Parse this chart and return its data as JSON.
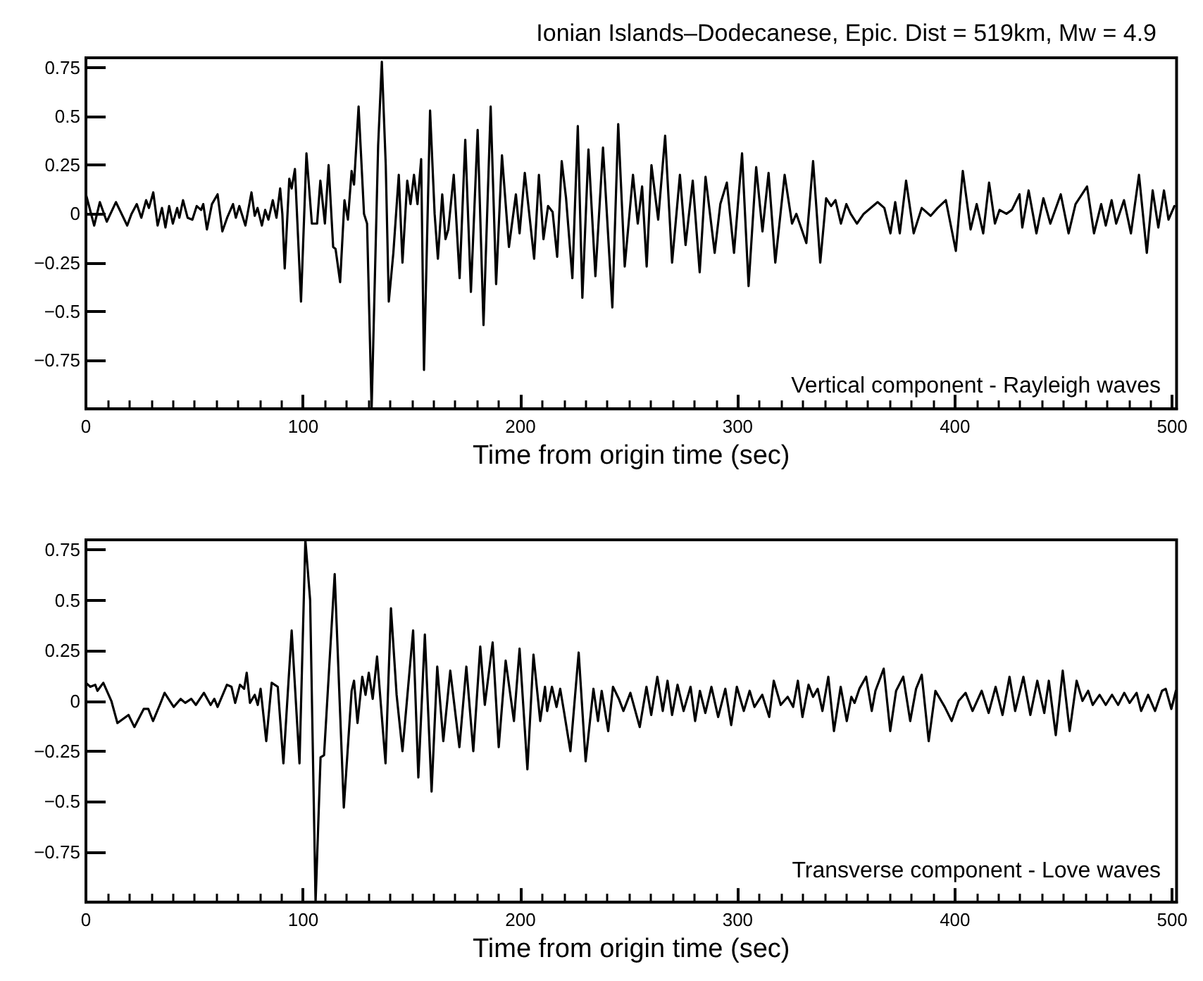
{
  "chart_data": [
    {
      "type": "line",
      "title": "Ionian Islands–Dodecanese, Epic. Dist = 519km, Mw = 4.9",
      "xlabel": "Time from origin time (sec)",
      "annotations": [
        "Vertical component - Rayleigh waves"
      ],
      "marker": "none",
      "xlim": [
        0,
        502
      ],
      "ylim": [
        -1,
        0.8
      ],
      "xticks": [
        0,
        100,
        200,
        300,
        400,
        500
      ],
      "yticks": [
        {
          "value": -0.75,
          "label": "−0.75"
        },
        {
          "value": -0.5,
          "label": "−0.5"
        },
        {
          "value": -0.25,
          "label": "−0.25"
        },
        0,
        0.25,
        0.5,
        0.75
      ],
      "series": [
        {
          "color": "#000000",
          "x": [
            0,
            3.8,
            6.4,
            9.6,
            13.8,
            19,
            21,
            23.4,
            25.5,
            27.7,
            29,
            31,
            33,
            35,
            36.6,
            38.3,
            40,
            42,
            43,
            44.7,
            46.8,
            49,
            51,
            53,
            54,
            55.7,
            58,
            60.6,
            62.8,
            65,
            67.7,
            69,
            70.6,
            73.4,
            76.2,
            77.7,
            79,
            81,
            82.5,
            84,
            86,
            87.7,
            89.4,
            90.4,
            91.5,
            93.6,
            94.7,
            96.2,
            99,
            101.5,
            104,
            106.4,
            107.9,
            110,
            111.7,
            113.8,
            114.9,
            117,
            119,
            120.6,
            122.3,
            123.4,
            125.5,
            128,
            129.4,
            131.5,
            134.5,
            136.2,
            138,
            139.4,
            141.5,
            144,
            145.7,
            147.9,
            149.4,
            151,
            152.6,
            154.3,
            155.6,
            158.4,
            160.5,
            162,
            164,
            165.5,
            166.8,
            169.3,
            172,
            174.6,
            177.2,
            180.3,
            183,
            186.3,
            188.8,
            191.5,
            194.7,
            197.9,
            199.6,
            202,
            206.3,
            208.5,
            210.6,
            212.7,
            214.8,
            216.9,
            219,
            221,
            223.9,
            226.4,
            228.5,
            231.3,
            234.5,
            238,
            242.3,
            245,
            248,
            251.8,
            254,
            256,
            258.1,
            260.3,
            263.4,
            266.6,
            269.8,
            273.4,
            276,
            279.3,
            282.5,
            285.2,
            289.4,
            292,
            295,
            298.3,
            302,
            305,
            308.5,
            311.4,
            314.2,
            317.3,
            321.6,
            325,
            327,
            331.6,
            334.7,
            338,
            340.7,
            343,
            345,
            347.5,
            350,
            352,
            354.9,
            358,
            364.4,
            367.5,
            370.3,
            372.5,
            374.6,
            377.5,
            381,
            384.7,
            388.8,
            392,
            395.8,
            400.4,
            403.6,
            407.2,
            410,
            413,
            415.7,
            418.4,
            420.5,
            423.7,
            426.2,
            429.7,
            431,
            433.9,
            437.5,
            440.7,
            443.9,
            448.7,
            452.3,
            455.5,
            460.8,
            464,
            467.3,
            469.4,
            472.1,
            474.2,
            477.8,
            481,
            484.7,
            488.3,
            491,
            493.6,
            496.2,
            498.3,
            501
          ],
          "values": [
            0.1,
            -0.06,
            0.06,
            -0.04,
            0.06,
            -0.06,
            0,
            0.05,
            -0.02,
            0.07,
            0.03,
            0.11,
            -0.06,
            0.03,
            -0.07,
            0.04,
            -0.05,
            0.03,
            -0.02,
            0.07,
            -0.02,
            -0.03,
            0.04,
            0.02,
            0.05,
            -0.08,
            0.05,
            0.1,
            -0.09,
            -0.02,
            0.05,
            -0.02,
            0.04,
            -0.06,
            0.11,
            -0.01,
            0.03,
            -0.06,
            0.02,
            -0.03,
            0.07,
            -0.02,
            0.13,
            0,
            -0.28,
            0.18,
            0.13,
            0.23,
            -0.45,
            0.31,
            -0.05,
            -0.05,
            0.17,
            -0.05,
            0.25,
            -0.17,
            -0.18,
            -0.35,
            0.07,
            -0.03,
            0.22,
            0.15,
            0.55,
            0,
            -0.05,
            -1,
            0.35,
            0.78,
            0.25,
            -0.45,
            -0.2,
            0.2,
            -0.25,
            0.17,
            0.05,
            0.2,
            0.05,
            0.28,
            -0.8,
            0.53,
            0,
            -0.23,
            0.1,
            -0.13,
            -0.08,
            0.2,
            -0.33,
            0.38,
            -0.4,
            0.43,
            -0.57,
            0.55,
            -0.36,
            0.3,
            -0.17,
            0.1,
            -0.1,
            0.21,
            -0.23,
            0.2,
            -0.13,
            0.04,
            0.01,
            -0.22,
            0.27,
            0.08,
            -0.33,
            0.45,
            -0.43,
            0.33,
            -0.32,
            0.34,
            -0.48,
            0.46,
            -0.27,
            0.2,
            -0.05,
            0.14,
            -0.27,
            0.25,
            -0.03,
            0.4,
            -0.25,
            0.2,
            -0.16,
            0.17,
            -0.3,
            0.19,
            -0.2,
            0.05,
            0.16,
            -0.2,
            0.31,
            -0.37,
            0.24,
            -0.09,
            0.21,
            -0.25,
            0.2,
            -0.05,
            0,
            -0.15,
            0.27,
            -0.25,
            0.08,
            0.04,
            0.07,
            -0.05,
            0.05,
            0,
            -0.05,
            0,
            0.06,
            0.03,
            -0.1,
            0.06,
            -0.1,
            0.17,
            -0.1,
            0.03,
            -0.01,
            0.03,
            0.07,
            -0.19,
            0.22,
            -0.08,
            0.05,
            -0.1,
            0.16,
            -0.05,
            0.02,
            0,
            0.02,
            0.1,
            -0.07,
            0.12,
            -0.1,
            0.08,
            -0.05,
            0.1,
            -0.1,
            0.05,
            0.14,
            -0.1,
            0.05,
            -0.06,
            0.07,
            -0.05,
            0.07,
            -0.1,
            0.2,
            -0.2,
            0.12,
            -0.07,
            0.12,
            -0.03,
            0.04
          ]
        }
      ]
    },
    {
      "type": "line",
      "xlabel": "Time from origin time (sec)",
      "annotations": [
        "Transverse component - Love waves"
      ],
      "marker": "none",
      "xlim": [
        0,
        502
      ],
      "ylim": [
        -1,
        0.8
      ],
      "xticks": [
        0,
        100,
        200,
        300,
        400,
        500
      ],
      "yticks": [
        {
          "value": -0.75,
          "label": "−0.75"
        },
        {
          "value": -0.5,
          "label": "−0.5"
        },
        {
          "value": -0.25,
          "label": "−0.25"
        },
        0,
        0.25,
        0.5,
        0.75
      ],
      "series": [
        {
          "color": "#000000",
          "x": [
            0,
            2,
            4.3,
            5.3,
            8,
            11.7,
            14.5,
            19.6,
            22.3,
            26.6,
            28.7,
            30.9,
            34,
            36.2,
            40.4,
            43.6,
            45.7,
            48.5,
            50.6,
            54.3,
            57.4,
            59.1,
            60.6,
            64.9,
            67,
            68.7,
            70.9,
            72.8,
            74,
            75.5,
            77.7,
            79.1,
            80.4,
            83,
            85.5,
            88.3,
            90.9,
            94.7,
            98.3,
            101,
            103.2,
            105.7,
            108,
            109.6,
            114.5,
            118.7,
            122.3,
            123.4,
            125,
            127.2,
            128.7,
            130.2,
            132,
            134,
            137.9,
            140.4,
            143,
            145.7,
            150.6,
            153,
            156,
            159.1,
            161.7,
            164.5,
            167.7,
            171.9,
            175.1,
            178.3,
            181.5,
            183.6,
            187.2,
            190,
            193.2,
            197,
            199.6,
            203.2,
            206,
            209.1,
            211.3,
            212.3,
            214.5,
            216.6,
            218.3,
            220,
            223,
            226.8,
            230,
            233.6,
            235.7,
            237.4,
            240.4,
            242.6,
            245.3,
            247.4,
            250.6,
            254.9,
            258,
            260.2,
            263,
            265.5,
            267.7,
            269.8,
            272.3,
            275.1,
            278.3,
            280.4,
            282.6,
            285.1,
            287.9,
            291,
            294.3,
            297,
            299.6,
            302.8,
            305.5,
            307.7,
            311.3,
            314.5,
            316.6,
            319.8,
            323,
            325.5,
            327.7,
            329.8,
            332.6,
            334.7,
            336.8,
            339,
            341.7,
            344.3,
            347.4,
            350.2,
            352.3,
            353.8,
            356,
            359.1,
            361.7,
            363.4,
            367.2,
            370.2,
            372.9,
            376.2,
            379.4,
            382.1,
            384.7,
            387.9,
            391,
            395.3,
            398.5,
            401.7,
            404.9,
            408.1,
            412.3,
            415.5,
            418.7,
            421.9,
            425.1,
            427.7,
            431.5,
            434.7,
            437.9,
            441.1,
            443.2,
            446.4,
            449.6,
            452.8,
            456,
            458.7,
            461.3,
            463.4,
            466.6,
            469.4,
            472.3,
            475.1,
            477.9,
            480.4,
            483.6,
            485.7,
            488.9,
            492.1,
            495.3,
            497,
            499.6,
            501.7
          ],
          "values": [
            0.09,
            0.07,
            0.08,
            0.05,
            0.09,
            0,
            -0.11,
            -0.07,
            -0.13,
            -0.04,
            -0.04,
            -0.1,
            -0.02,
            0.04,
            -0.03,
            0.01,
            -0.01,
            0.01,
            -0.02,
            0.04,
            -0.02,
            0.01,
            -0.03,
            0.08,
            0.07,
            -0.01,
            0.08,
            0.06,
            0.14,
            -0.01,
            0.03,
            -0.02,
            0.06,
            -0.2,
            0.09,
            0.07,
            -0.31,
            0.35,
            -0.31,
            0.8,
            0.5,
            -1,
            -0.28,
            -0.27,
            0.63,
            -0.53,
            0.05,
            0.1,
            -0.11,
            0.12,
            0.03,
            0.14,
            0.01,
            0.22,
            -0.31,
            0.46,
            0.03,
            -0.25,
            0.35,
            -0.38,
            0.33,
            -0.45,
            0.17,
            -0.2,
            0.15,
            -0.23,
            0.17,
            -0.25,
            0.27,
            -0.02,
            0.29,
            -0.23,
            0.2,
            -0.1,
            0.26,
            -0.34,
            0.23,
            -0.1,
            0.07,
            -0.05,
            0.07,
            -0.03,
            0.06,
            -0.05,
            -0.25,
            0.24,
            -0.3,
            0.06,
            -0.1,
            0.05,
            -0.15,
            0.07,
            0.01,
            -0.05,
            0.04,
            -0.13,
            0.07,
            -0.07,
            0.12,
            -0.05,
            0.1,
            -0.07,
            0.08,
            -0.05,
            0.07,
            -0.1,
            0.05,
            -0.06,
            0.07,
            -0.08,
            0.06,
            -0.12,
            0.07,
            -0.05,
            0.05,
            -0.03,
            0.03,
            -0.08,
            0.1,
            -0.02,
            0.02,
            -0.03,
            0.1,
            -0.08,
            0.08,
            0.02,
            0.06,
            -0.05,
            0.12,
            -0.15,
            0.07,
            -0.1,
            0.02,
            -0.01,
            0.06,
            0.12,
            -0.05,
            0.05,
            0.16,
            -0.15,
            0.05,
            0.12,
            -0.1,
            0.06,
            0.13,
            -0.2,
            0.05,
            -0.03,
            -0.1,
            0,
            0.04,
            -0.05,
            0.05,
            -0.06,
            0.07,
            -0.07,
            0.12,
            -0.05,
            0.12,
            -0.07,
            0.1,
            -0.06,
            0.1,
            -0.17,
            0.15,
            -0.15,
            0.1,
            0,
            0.05,
            -0.02,
            0.03,
            -0.02,
            0.03,
            -0.02,
            0.04,
            -0.01,
            0.04,
            -0.05,
            0.03,
            -0.05,
            0.05,
            0.06,
            -0.04,
            0.05
          ]
        }
      ]
    }
  ]
}
